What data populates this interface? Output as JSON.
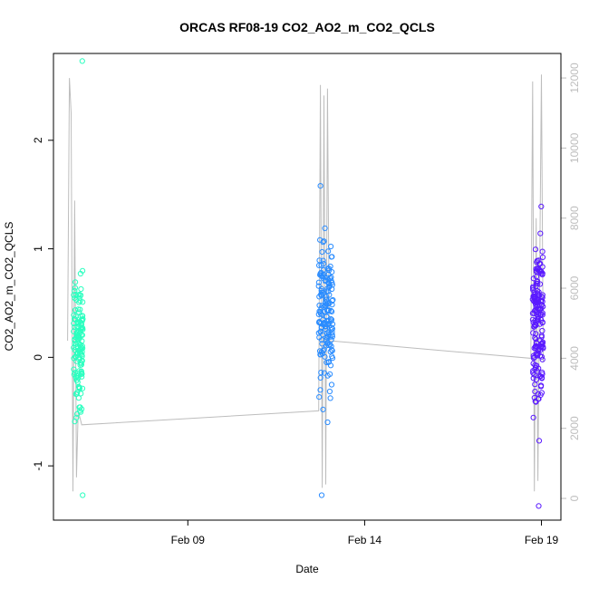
{
  "chart_data": {
    "type": "scatter",
    "title": "ORCAS RF08-19 CO2_AO2_m_CO2_QCLS",
    "xlabel": "Date",
    "ylabel": "CO2_AO2_m_CO2_QCLS",
    "x_ticks": [
      {
        "label": "Feb 09",
        "day": 9
      },
      {
        "label": "Feb 14",
        "day": 14
      },
      {
        "label": "Feb 19",
        "day": 19
      }
    ],
    "y_ticks": [
      -1,
      0,
      1,
      2
    ],
    "y_right_ticks": [
      0,
      2000,
      4000,
      6000,
      8000,
      10000,
      12000
    ],
    "xlim": [
      5.2,
      19.55
    ],
    "ylim": [
      -1.5,
      2.8
    ],
    "y_right_lim": [
      -620,
      12700
    ],
    "colors": {
      "flight_a": "#2affbf",
      "flight_b": "#2a8cff",
      "flight_c": "#5a1aff",
      "altitude": "#bdbdbd",
      "frame": "#000000"
    },
    "flights": [
      {
        "center_day": 5.9,
        "spread": 0.13,
        "mean": 0.12,
        "sd": 0.3,
        "n": 140,
        "y_min": -1.27,
        "y_max": 2.73,
        "color": "flight_a"
      },
      {
        "center_day": 12.9,
        "spread": 0.2,
        "mean": 0.42,
        "sd": 0.35,
        "n": 170,
        "y_min": -1.27,
        "y_max": 1.58,
        "color": "flight_b"
      },
      {
        "center_day": 18.9,
        "spread": 0.15,
        "mean": 0.35,
        "sd": 0.35,
        "n": 180,
        "y_min": -1.37,
        "y_max": 1.39,
        "color": "flight_c"
      }
    ],
    "altitude_line": [
      [
        5.6,
        4500
      ],
      [
        5.65,
        12000
      ],
      [
        5.7,
        11000
      ],
      [
        5.75,
        200
      ],
      [
        5.8,
        8500
      ],
      [
        5.85,
        600
      ],
      [
        5.9,
        2500
      ],
      [
        6.0,
        2100
      ],
      [
        12.7,
        2500
      ],
      [
        12.75,
        11800
      ],
      [
        12.8,
        300
      ],
      [
        12.85,
        11500
      ],
      [
        12.9,
        400
      ],
      [
        12.95,
        11700
      ],
      [
        13.0,
        4500
      ],
      [
        18.7,
        4000
      ],
      [
        18.75,
        11900
      ],
      [
        18.8,
        200
      ],
      [
        18.85,
        8000
      ],
      [
        18.9,
        500
      ],
      [
        19.0,
        12100
      ],
      [
        19.05,
        3900
      ]
    ]
  }
}
